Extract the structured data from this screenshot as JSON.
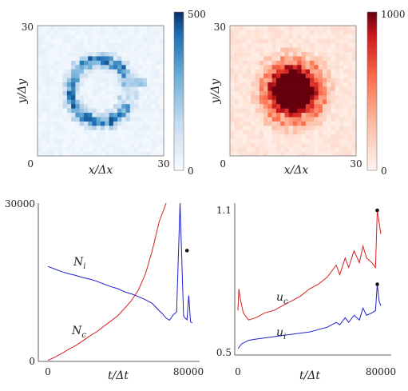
{
  "colors": {
    "red": "#d62020",
    "blue": "#1f1fcc",
    "marker": "#111111"
  },
  "chart_data": [
    {
      "type": "heatmap",
      "grid": 30,
      "colormap": "Blues",
      "xlabel": "x/Δx",
      "ylabel": "y/Δy",
      "xticks": [
        "0",
        "30"
      ],
      "yticks": [
        "30"
      ],
      "colorbar": {
        "min": 0,
        "max": 500,
        "ticks": [
          "500",
          "0"
        ]
      },
      "pattern": "partial ring (open toward right), center (15,15), radius ≈ 7, peak ≈ 450"
    },
    {
      "type": "heatmap",
      "grid": 30,
      "colormap": "Reds",
      "xlabel": "x/Δx",
      "ylabel": "y/Δy",
      "xticks": [
        "0",
        "30"
      ],
      "yticks": [
        "30"
      ],
      "colorbar": {
        "min": 0,
        "max": 1000,
        "ticks": [
          "1000",
          "0"
        ]
      },
      "pattern": "filled disc, center (15,15), radius ≈ 5 saturated, tail to ≈ 9"
    },
    {
      "type": "line",
      "xlabel": "t/Δt",
      "ylabel": "",
      "xticks": [
        "0",
        "80000"
      ],
      "yticks": [
        "30000",
        "0"
      ],
      "xlim": [
        0,
        90000
      ],
      "ylim": [
        0,
        30000
      ],
      "series": [
        {
          "name": "N_i",
          "label_main": "N",
          "label_sub": "i",
          "color": "#1f1fcc",
          "x": [
            0,
            4000,
            8000,
            12000,
            16000,
            20000,
            24000,
            28000,
            32000,
            36000,
            40000,
            44000,
            48000,
            52000,
            56000,
            60000,
            62000,
            64000,
            66000,
            68000,
            70000,
            72000,
            74000,
            76000,
            78000,
            79000,
            80000,
            81000,
            82000,
            83000
          ],
          "y": [
            18000,
            17500,
            17000,
            16600,
            16300,
            15900,
            15600,
            15200,
            14700,
            14200,
            13800,
            13200,
            12800,
            12300,
            11700,
            11000,
            10300,
            9600,
            9000,
            8200,
            7800,
            8800,
            9400,
            30000,
            8600,
            8200,
            7900,
            12500,
            7500,
            7300
          ]
        },
        {
          "name": "N_c",
          "label_main": "N",
          "label_sub": "c",
          "color": "#d62020",
          "x": [
            0,
            4000,
            8000,
            12000,
            16000,
            20000,
            24000,
            28000,
            32000,
            36000,
            40000,
            44000,
            48000,
            52000,
            56000,
            60000,
            64000,
            68000
          ],
          "y": [
            200,
            800,
            1500,
            2300,
            3000,
            3900,
            4800,
            5600,
            6600,
            7600,
            8600,
            10000,
            11500,
            13500,
            16500,
            21000,
            26500,
            30000
          ]
        }
      ],
      "markers": [
        {
          "x": 80000,
          "y": 21000
        }
      ],
      "annotations": [
        "N_i",
        "N_c"
      ]
    },
    {
      "type": "line",
      "xlabel": "t/Δt",
      "ylabel": "",
      "xticks": [
        "0",
        "80000"
      ],
      "yticks": [
        "1.1",
        "0.5"
      ],
      "xlim": [
        0,
        80000
      ],
      "ylim": [
        0.5,
        1.1
      ],
      "series": [
        {
          "name": "u_c",
          "label_main": "u",
          "label_sub": "c",
          "color": "#d62020",
          "x": [
            0,
            500,
            1500,
            3000,
            6000,
            10000,
            15000,
            20000,
            25000,
            30000,
            35000,
            40000,
            45000,
            50000,
            55000,
            57000,
            60000,
            62000,
            65000,
            68000,
            70000,
            72000,
            75000,
            77000,
            78000,
            79000,
            80000
          ],
          "y": [
            0.68,
            0.77,
            0.72,
            0.67,
            0.64,
            0.65,
            0.67,
            0.68,
            0.7,
            0.72,
            0.74,
            0.77,
            0.79,
            0.82,
            0.87,
            0.83,
            0.9,
            0.86,
            0.93,
            0.88,
            0.95,
            0.9,
            0.88,
            0.86,
            1.1,
            1.05,
            1.0
          ]
        },
        {
          "name": "u_i",
          "label_main": "u",
          "label_sub": "i",
          "color": "#1f1fcc",
          "x": [
            0,
            2000,
            6000,
            10000,
            15000,
            20000,
            25000,
            30000,
            35000,
            40000,
            45000,
            50000,
            55000,
            57000,
            60000,
            62000,
            65000,
            68000,
            70000,
            72000,
            75000,
            77000,
            78000,
            79000,
            80000
          ],
          "y": [
            0.52,
            0.54,
            0.555,
            0.56,
            0.565,
            0.57,
            0.575,
            0.58,
            0.585,
            0.59,
            0.6,
            0.61,
            0.63,
            0.62,
            0.65,
            0.63,
            0.66,
            0.64,
            0.69,
            0.66,
            0.67,
            0.68,
            0.79,
            0.72,
            0.7
          ]
        }
      ],
      "markers": [
        {
          "x": 78000,
          "y": 1.1
        },
        {
          "x": 78000,
          "y": 0.79
        }
      ],
      "annotations": [
        "u_c",
        "u_i"
      ]
    }
  ]
}
